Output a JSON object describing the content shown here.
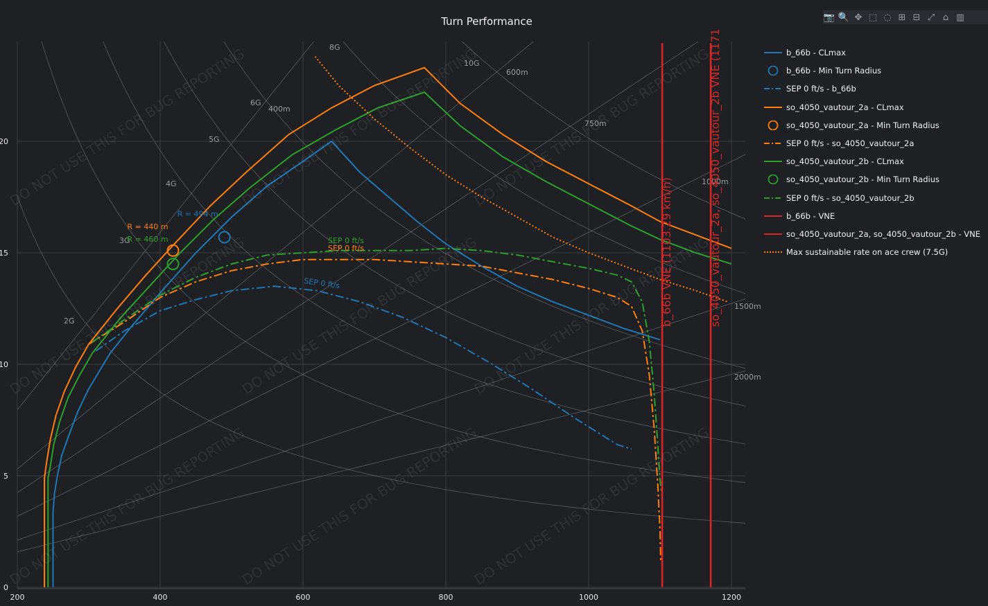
{
  "title": "Turn Performance",
  "modebar": {
    "buttons": [
      {
        "name": "camera-icon",
        "glyph": "📷"
      },
      {
        "name": "zoom-icon",
        "glyph": "🔍"
      },
      {
        "name": "pan-icon",
        "glyph": "✥"
      },
      {
        "name": "box-select-icon",
        "glyph": "⬚"
      },
      {
        "name": "lasso-icon",
        "glyph": "◌"
      },
      {
        "name": "zoom-in-icon",
        "glyph": "⊞"
      },
      {
        "name": "zoom-out-icon",
        "glyph": "⊟"
      },
      {
        "name": "autoscale-icon",
        "glyph": "⤢"
      },
      {
        "name": "home-icon",
        "glyph": "⌂"
      },
      {
        "name": "plotly-logo-icon",
        "glyph": "▥"
      }
    ]
  },
  "watermark": "DO NOT USE THIS FOR BUG REPORTING",
  "chart_data": {
    "type": "line",
    "title": "Turn Performance",
    "xlim": [
      200,
      1205
    ],
    "ylim": [
      0,
      24.4
    ],
    "x_ticks": [
      "200",
      "400",
      "600",
      "800",
      "1000",
      "1200"
    ],
    "x_tick_values": [
      200,
      400,
      600,
      800,
      1000,
      1200
    ],
    "y_ticks": [
      "0",
      "5",
      "10",
      "15",
      "20"
    ],
    "y_tick_values": [
      0,
      5,
      10,
      15,
      20
    ],
    "grid": true,
    "legend_position": "right",
    "g_lines": [
      {
        "label": "2G",
        "n": 2
      },
      {
        "label": "3G",
        "n": 3
      },
      {
        "label": "4G",
        "n": 4
      },
      {
        "label": "5G",
        "n": 5
      },
      {
        "label": "6G",
        "n": 6
      },
      {
        "label": "8G",
        "n": 8
      },
      {
        "label": "10G",
        "n": 10
      }
    ],
    "radius_lines": [
      {
        "label": "400m",
        "r": 400
      },
      {
        "label": "600m",
        "r": 600
      },
      {
        "label": "750m",
        "r": 750
      },
      {
        "label": "1000m",
        "r": 1000
      },
      {
        "label": "1500m",
        "r": 1500
      },
      {
        "label": "2000m",
        "r": 2000
      }
    ],
    "series": [
      {
        "name": "b_66b - CLmax",
        "color": "#1f77b4",
        "dash": "solid",
        "x": [
          250,
          250,
          252,
          256,
          262,
          272,
          285,
          300,
          330,
          360,
          400,
          450,
          500,
          550,
          600,
          640,
          680,
          720,
          760,
          800,
          850,
          900,
          950,
          1000,
          1050,
          1100
        ],
        "y": [
          0,
          3.4,
          4.2,
          5.0,
          5.9,
          6.8,
          7.9,
          8.9,
          10.5,
          11.7,
          13.2,
          15.0,
          16.6,
          18.0,
          19.1,
          20.0,
          18.6,
          17.5,
          16.4,
          15.4,
          14.4,
          13.5,
          12.8,
          12.2,
          11.6,
          11.1
        ]
      },
      {
        "name": "b_66b - Min Turn Radius",
        "color": "#1f77b4",
        "marker": true,
        "x": [
          490
        ],
        "y": [
          15.7
        ],
        "label": "R = 494 m"
      },
      {
        "name": "SEP 0 ft/s - b_66b",
        "color": "#1f77b4",
        "dash": "dashdot",
        "label": "SEP 0 ft/s",
        "x": [
          310,
          350,
          400,
          450,
          500,
          560,
          620,
          680,
          740,
          800,
          860,
          920,
          980,
          1040,
          1060
        ],
        "y": [
          10.6,
          11.5,
          12.4,
          12.9,
          13.3,
          13.5,
          13.3,
          12.8,
          12.1,
          11.2,
          10.1,
          8.9,
          7.6,
          6.4,
          6.2
        ]
      },
      {
        "name": "so_4050_vautour_2a - CLmax",
        "color": "#ff7f0e",
        "dash": "solid",
        "x": [
          238,
          238,
          241,
          246,
          254,
          266,
          282,
          300,
          340,
          380,
          420,
          470,
          520,
          580,
          640,
          700,
          770,
          820,
          880,
          940,
          1000,
          1060,
          1100,
          1150,
          1200
        ],
        "y": [
          0,
          4.9,
          5.6,
          6.6,
          7.7,
          8.8,
          9.9,
          10.9,
          12.5,
          14.0,
          15.4,
          17.1,
          18.6,
          20.3,
          21.5,
          22.5,
          23.3,
          21.7,
          20.3,
          19.1,
          18.1,
          17.1,
          16.4,
          15.8,
          15.2
        ]
      },
      {
        "name": "so_4050_vautour_2a - Min Turn Radius",
        "color": "#ff7f0e",
        "marker": true,
        "x": [
          418
        ],
        "y": [
          15.1
        ],
        "label": "R = 440 m"
      },
      {
        "name": "SEP 0 ft/s - so_4050_vautour_2a",
        "color": "#ff7f0e",
        "dash": "dashdot",
        "label": "SEP 0 ft/s",
        "x": [
          300,
          350,
          400,
          450,
          500,
          550,
          600,
          650,
          700,
          750,
          800,
          850,
          900,
          950,
          1000,
          1040,
          1060,
          1075,
          1085,
          1092,
          1097,
          1100,
          1101
        ],
        "y": [
          10.9,
          11.9,
          13.0,
          13.7,
          14.2,
          14.5,
          14.7,
          14.7,
          14.7,
          14.6,
          14.5,
          14.4,
          14.1,
          13.8,
          13.4,
          13.0,
          12.6,
          11.5,
          9.5,
          7.0,
          4.5,
          2.5,
          1.2
        ]
      },
      {
        "name": "so_4050_vautour_2b - CLmax",
        "color": "#2ca02c",
        "dash": "solid",
        "x": [
          243,
          243,
          246,
          251,
          259,
          271,
          287,
          305,
          345,
          385,
          425,
          475,
          525,
          585,
          645,
          705,
          770,
          820,
          880,
          940,
          1000,
          1060,
          1100,
          1150,
          1200
        ],
        "y": [
          0,
          4.9,
          5.4,
          6.4,
          7.4,
          8.5,
          9.5,
          10.5,
          12.1,
          13.5,
          14.9,
          16.5,
          17.9,
          19.4,
          20.5,
          21.5,
          22.2,
          20.7,
          19.3,
          18.2,
          17.2,
          16.2,
          15.6,
          15.0,
          14.5
        ]
      },
      {
        "name": "so_4050_vautour_2b - Min Turn Radius",
        "color": "#2ca02c",
        "marker": true,
        "x": [
          418
        ],
        "y": [
          14.5
        ],
        "label": "R = 460 m"
      },
      {
        "name": "SEP 0 ft/s - so_4050_vautour_2b",
        "color": "#2ca02c",
        "dash": "dashdot",
        "label": "SEP 0 ft/s",
        "x": [
          305,
          350,
          400,
          450,
          500,
          550,
          600,
          650,
          700,
          750,
          800,
          850,
          900,
          950,
          1000,
          1040,
          1060,
          1075,
          1085,
          1092,
          1097,
          1100,
          1103
        ],
        "y": [
          11.0,
          12.0,
          13.1,
          13.9,
          14.5,
          14.9,
          15.0,
          15.1,
          15.1,
          15.1,
          15.2,
          15.1,
          14.9,
          14.6,
          14.3,
          14.0,
          13.7,
          12.8,
          11.0,
          8.6,
          6.3,
          4.8,
          4.0
        ]
      },
      {
        "name": "b_66b - VNE",
        "color": "#d62728",
        "dash": "solid",
        "vertical": true,
        "x": [
          1103,
          1103
        ],
        "y": [
          0,
          24.4
        ],
        "label": "b_66b VNE (1103.29 km/h)"
      },
      {
        "name": "so_4050_vautour_2a, so_4050_vautour_2b - VNE",
        "color": "#d62728",
        "dash": "solid",
        "vertical": true,
        "x": [
          1171,
          1171
        ],
        "y": [
          0,
          24.4
        ],
        "label": "so_4050_vautour_2a, so_4050_vautour_2b VNE (1171"
      },
      {
        "name": "Max sustainable rate on ace crew (7.5G)",
        "color": "#ff7f0e",
        "dash": "dot",
        "x": [
          617,
          650,
          700,
          750,
          800,
          850,
          900,
          950,
          1000,
          1050,
          1100,
          1150,
          1195
        ],
        "y": [
          23.8,
          22.5,
          21.0,
          19.7,
          18.5,
          17.5,
          16.6,
          15.7,
          15.0,
          14.4,
          13.8,
          13.3,
          12.8
        ]
      }
    ]
  }
}
